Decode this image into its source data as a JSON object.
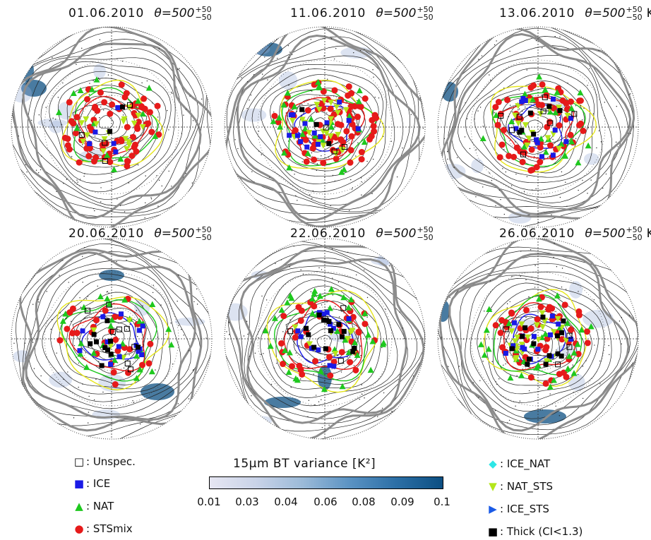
{
  "panels": [
    {
      "date": "01.06.2010",
      "theta": "θ=500",
      "sup": "+50",
      "sub": "−50",
      "unit": ""
    },
    {
      "date": "11.06.2010",
      "theta": "θ=500",
      "sup": "+50",
      "sub": "−50",
      "unit": ""
    },
    {
      "date": "13.06.2010",
      "theta": "θ=500",
      "sup": "+50",
      "sub": "−50",
      "unit": "K"
    },
    {
      "date": "20.06.2010",
      "theta": "θ=500",
      "sup": "+50",
      "sub": "−50",
      "unit": ""
    },
    {
      "date": "22.06.2010",
      "theta": "θ=500",
      "sup": "+50",
      "sub": "−50",
      "unit": ""
    },
    {
      "date": "26.06.2010",
      "theta": "θ=500",
      "sup": "+50",
      "sub": "−50",
      "unit": "K"
    }
  ],
  "legend_left": [
    {
      "symbol": "□",
      "label": ": Unspec.",
      "color": "#000000",
      "icon": "open-square-icon"
    },
    {
      "symbol": "■",
      "label": ": ICE",
      "color": "#1a1ae6",
      "icon": "blue-square-icon"
    },
    {
      "symbol": "▲",
      "label": ": NAT",
      "color": "#1ec81e",
      "icon": "green-triangle-icon"
    },
    {
      "symbol": "●",
      "label": ": STSmix",
      "color": "#e61a1a",
      "icon": "red-circle-icon"
    }
  ],
  "legend_right": [
    {
      "symbol": "◆",
      "label": ": ICE_NAT",
      "color": "#2ee6e6",
      "icon": "cyan-diamond-icon"
    },
    {
      "symbol": "▼",
      "label": ": NAT_STS",
      "color": "#b4e61a",
      "icon": "yellowgreen-triangle-icon"
    },
    {
      "symbol": "▶",
      "label": ": ICE_STS",
      "color": "#1a5ae6",
      "icon": "blue-right-triangle-icon"
    },
    {
      "symbol": "■",
      "label": ": Thick (CI<1.3)",
      "color": "#000000",
      "icon": "black-square-icon"
    }
  ],
  "colorbar": {
    "title": "15μm BT variance [K²]",
    "ticks": [
      "0.01",
      "0.03",
      "0.04",
      "0.06",
      "0.08",
      "0.09",
      "0.1"
    ]
  },
  "colors": {
    "contour_yellow": "#e6e61a",
    "contour_green": "#1ec81e",
    "contour_red": "#e61a1a",
    "contour_blue": "#1a1ae6",
    "jet_gray": "#8c8c8c",
    "variance_dark": "#0c4f82"
  }
}
